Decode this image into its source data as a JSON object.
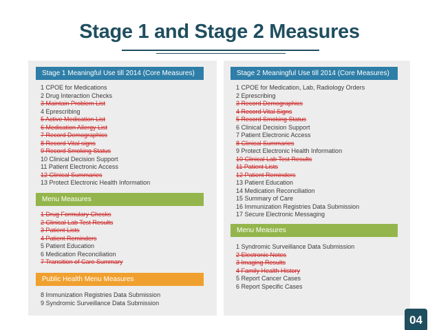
{
  "title": "Stage 1 and Stage 2 Measures",
  "colors": {
    "title": "#1f4e5f",
    "header_blue": "#2e7ea8",
    "header_green": "#93b54b",
    "header_orange": "#f0a02e",
    "struck": "#cc2222"
  },
  "stage1": {
    "header": "Stage 1 Meaningful Use till 2014  (Core Measures)",
    "items": [
      {
        "text": "1  CPOE for Medications",
        "struck": false
      },
      {
        "text": "2  Drug Interaction Checks",
        "struck": false
      },
      {
        "text": "3  Maintain Problem List",
        "struck": true
      },
      {
        "text": "4  Eprescribing",
        "struck": false
      },
      {
        "text": "5  Active Medication List",
        "struck": true
      },
      {
        "text": "6  Medication Allergy List",
        "struck": true
      },
      {
        "text": "7  Record Demographics",
        "struck": true
      },
      {
        "text": "8  Record Vital signs",
        "struck": true
      },
      {
        "text": "9  Record Smoking Status",
        "struck": true
      },
      {
        "text": "10  Clinical Decision Support",
        "struck": false
      },
      {
        "text": "11  Patient Electronic Access",
        "struck": false
      },
      {
        "text": "12  Clinical Summaries",
        "struck": true
      },
      {
        "text": "13  Protect Electronic Health Information",
        "struck": false
      }
    ]
  },
  "stage1_menu": {
    "header": "Menu Measures",
    "items": [
      {
        "text": "1  Drug Formulary Checks",
        "struck": true
      },
      {
        "text": "2  Clinical Lab Test Results",
        "struck": true
      },
      {
        "text": "3  Patient Lists",
        "struck": true
      },
      {
        "text": "4  Patient Reminders",
        "struck": true
      },
      {
        "text": "5  Patient Education",
        "struck": false
      },
      {
        "text": "6  Medication Reconciliation",
        "struck": false
      },
      {
        "text": "7  Transition of Care Summary",
        "struck": true
      }
    ]
  },
  "public_health": {
    "header": "Public Health Menu Measures",
    "items": [
      {
        "text": "8 Immunization Registries Data Submission",
        "struck": false
      },
      {
        "text": "9 Syndromic Surveillance Data Submission",
        "struck": false
      }
    ]
  },
  "stage2": {
    "header": "Stage 2 Meaningful Use till 2014  (Core Measures)",
    "items": [
      {
        "text": "1  CPOE for Medication, Lab, Radiology Orders",
        "struck": false
      },
      {
        "text": "2  Eprescribing",
        "struck": false
      },
      {
        "text": "3  Record Demographics",
        "struck": true
      },
      {
        "text": "4  Record Vital Signs",
        "struck": true
      },
      {
        "text": "5  Record Smoking Status",
        "struck": true
      },
      {
        "text": "6  Clinical Decision Support",
        "struck": false
      },
      {
        "text": "7  Patient Electronic Access",
        "struck": false
      },
      {
        "text": "8  Clinical Summaries",
        "struck": true
      },
      {
        "text": "9  Protect Electronic Health Information",
        "struck": false
      },
      {
        "text": "10  Clinical Lab Test Results",
        "struck": true
      },
      {
        "text": "11  Patient Lists",
        "struck": true
      },
      {
        "text": "12  Patient Reminders",
        "struck": true
      },
      {
        "text": "13  Patient Education",
        "struck": false
      },
      {
        "text": "14  Medication Reconciliation",
        "struck": false
      },
      {
        "text": "15  Summary of Care",
        "struck": false
      },
      {
        "text": "16  Immunization Registries Data Submission",
        "struck": false
      },
      {
        "text": "17  Secure Electronic Messaging",
        "struck": false
      }
    ]
  },
  "stage2_menu": {
    "header": "Menu Measures",
    "items": [
      {
        "text": "1  Syndromic Surveillance Data Submission",
        "struck": false
      },
      {
        "text": "2  Electronic Notes",
        "struck": true
      },
      {
        "text": "3  Imaging Results",
        "struck": true
      },
      {
        "text": "4  Family Health History",
        "struck": true
      },
      {
        "text": "5  Report Cancer Cases",
        "struck": false
      },
      {
        "text": "6  Report Specific Cases",
        "struck": false
      }
    ]
  },
  "page_number": "04"
}
